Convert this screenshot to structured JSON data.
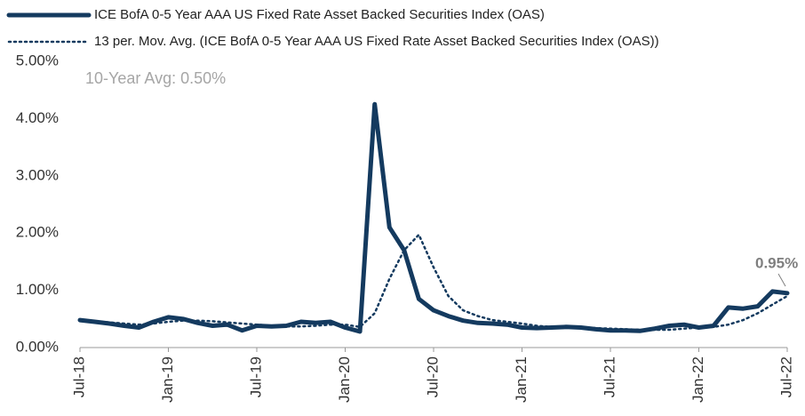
{
  "chart_data": {
    "type": "line",
    "annotations": [
      "10-Year Avg:  0.50%",
      "0.95%"
    ],
    "categories": [
      "Jul-18",
      null,
      null,
      null,
      null,
      null,
      "Jan-19",
      null,
      null,
      null,
      null,
      null,
      "Jul-19",
      null,
      null,
      null,
      null,
      null,
      "Jan-20",
      null,
      null,
      null,
      null,
      null,
      "Jul-20",
      null,
      null,
      null,
      null,
      null,
      "Jan-21",
      null,
      null,
      null,
      null,
      null,
      "Jul-21",
      null,
      null,
      null,
      null,
      null,
      "Jan-22",
      null,
      null,
      null,
      null,
      null,
      "Jul-22"
    ],
    "series": [
      {
        "name": "ICE BofA 0-5 Year AAA US Fixed Rate Asset Backed Securities Index (OAS)",
        "color": "#143a5f",
        "style": "solid",
        "values": [
          0.48,
          0.45,
          0.42,
          0.38,
          0.35,
          0.45,
          0.53,
          0.5,
          0.43,
          0.38,
          0.4,
          0.3,
          0.38,
          0.37,
          0.38,
          0.45,
          0.43,
          0.45,
          0.35,
          0.28,
          4.25,
          2.1,
          1.7,
          0.85,
          0.65,
          0.55,
          0.47,
          0.43,
          0.42,
          0.4,
          0.35,
          0.34,
          0.35,
          0.36,
          0.35,
          0.32,
          0.3,
          0.3,
          0.29,
          0.33,
          0.38,
          0.4,
          0.35,
          0.38,
          0.7,
          0.68,
          0.72,
          0.98,
          0.95
        ]
      },
      {
        "name": "13 per. Mov. Avg. (ICE BofA 0-5 Year AAA US Fixed Rate Asset Backed Securities Index (OAS))",
        "color": "#143a5f",
        "style": "dotted",
        "values": [
          0.47,
          0.46,
          0.44,
          0.42,
          0.4,
          0.42,
          0.45,
          0.47,
          0.47,
          0.46,
          0.44,
          0.42,
          0.4,
          0.38,
          0.37,
          0.37,
          0.38,
          0.4,
          0.4,
          0.36,
          0.6,
          1.2,
          1.7,
          1.97,
          1.4,
          0.9,
          0.65,
          0.55,
          0.48,
          0.45,
          0.42,
          0.38,
          0.36,
          0.35,
          0.35,
          0.34,
          0.33,
          0.32,
          0.31,
          0.31,
          0.31,
          0.33,
          0.35,
          0.36,
          0.4,
          0.48,
          0.6,
          0.75,
          0.9
        ]
      }
    ],
    "ylim": [
      0,
      5
    ],
    "yticks": [
      {
        "value": 0,
        "label": "0.00%"
      },
      {
        "value": 1,
        "label": "1.00%"
      },
      {
        "value": 2,
        "label": "2.00%"
      },
      {
        "value": 3,
        "label": "3.00%"
      },
      {
        "value": 4,
        "label": "4.00%"
      },
      {
        "value": 5,
        "label": "5.00%"
      }
    ],
    "grid": false
  }
}
